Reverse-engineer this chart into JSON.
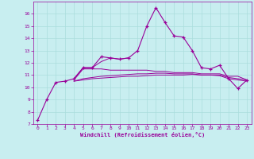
{
  "background_color": "#c8eef0",
  "grid_color": "#aadddd",
  "line_color": "#990099",
  "marker_color": "#990099",
  "xlabel": "Windchill (Refroidissement éolien,°C)",
  "xlabel_color": "#990099",
  "tick_color": "#990099",
  "xlim": [
    -0.5,
    23.5
  ],
  "ylim": [
    7,
    17
  ],
  "yticks": [
    7,
    8,
    9,
    10,
    11,
    12,
    13,
    14,
    15,
    16
  ],
  "xticks": [
    0,
    1,
    2,
    3,
    4,
    5,
    6,
    7,
    8,
    9,
    10,
    11,
    12,
    13,
    14,
    15,
    16,
    17,
    18,
    19,
    20,
    21,
    22,
    23
  ],
  "series": [
    [
      7.3,
      9.0,
      10.4,
      10.5,
      10.7,
      11.6,
      11.6,
      12.5,
      12.4,
      12.3,
      12.4,
      13.0,
      15.0,
      16.5,
      15.3,
      14.2,
      14.1,
      13.0,
      11.6,
      11.5,
      11.8,
      10.7,
      9.9,
      10.6
    ],
    [
      null,
      null,
      null,
      null,
      10.7,
      11.6,
      11.6,
      12.1,
      12.4,
      12.3,
      12.4,
      null,
      null,
      null,
      null,
      null,
      null,
      null,
      null,
      null,
      null,
      null,
      null,
      null
    ],
    [
      null,
      null,
      null,
      null,
      10.6,
      11.5,
      11.5,
      11.5,
      11.4,
      11.4,
      11.4,
      11.4,
      11.4,
      11.3,
      11.3,
      11.2,
      11.2,
      11.2,
      11.1,
      11.1,
      11.1,
      10.9,
      10.9,
      10.6
    ],
    [
      null,
      null,
      null,
      null,
      10.5,
      10.7,
      10.8,
      10.9,
      10.95,
      11.0,
      11.05,
      11.1,
      11.1,
      11.15,
      11.15,
      11.1,
      11.1,
      11.1,
      11.0,
      11.0,
      11.0,
      10.8,
      10.7,
      10.6
    ],
    [
      null,
      null,
      null,
      null,
      10.5,
      10.6,
      10.7,
      10.75,
      10.8,
      10.85,
      10.9,
      10.9,
      10.95,
      11.0,
      11.0,
      11.0,
      11.0,
      11.05,
      11.0,
      11.0,
      10.95,
      10.7,
      10.6,
      10.5
    ]
  ]
}
